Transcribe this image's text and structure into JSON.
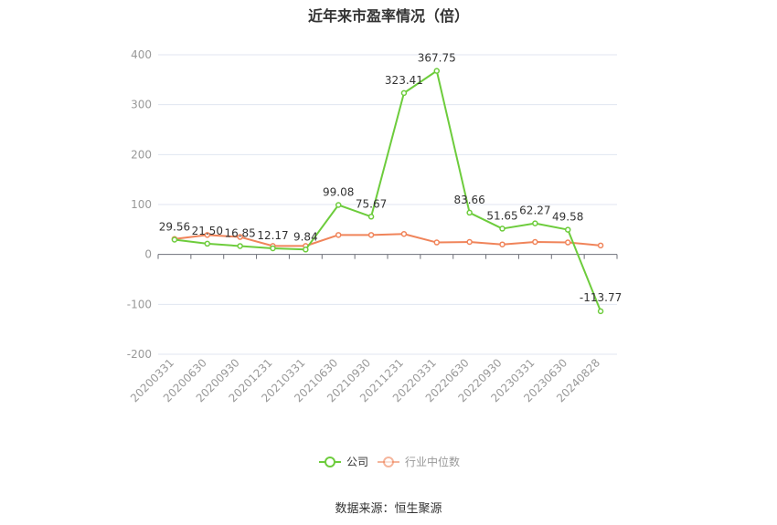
{
  "chart_data": {
    "type": "line",
    "title": "近年来市盈率情况（倍）",
    "categories": [
      "20200331",
      "20200630",
      "20200930",
      "20201231",
      "20210331",
      "20210630",
      "20210930",
      "20211231",
      "20220331",
      "20220630",
      "20220930",
      "20230331",
      "20230630",
      "20240828"
    ],
    "series": [
      {
        "name": "公司",
        "color": "#6dcc3c",
        "values": [
          29.56,
          21.5,
          16.85,
          12.17,
          9.84,
          99.08,
          75.67,
          323.41,
          367.75,
          83.66,
          51.65,
          62.27,
          49.58,
          -113.77
        ],
        "labels": [
          "29.56",
          "21.50",
          "16.85",
          "12.17",
          "9.84",
          "99.08",
          "75.67",
          "323.41",
          "367.75",
          "83.66",
          "51.65",
          "62.27",
          "49.58",
          "-113.77"
        ]
      },
      {
        "name": "行业中位数",
        "color": "#f0845a",
        "values": [
          31,
          39,
          35,
          17,
          17,
          39,
          39,
          41,
          24,
          25,
          20,
          25,
          24,
          18
        ]
      }
    ],
    "yticks": [
      400,
      300,
      200,
      100,
      0,
      -100,
      -200
    ],
    "ylim": [
      -200,
      400
    ],
    "grid": true,
    "legend_position": "bottom-center"
  },
  "source_text": "数据来源：恒生聚源"
}
